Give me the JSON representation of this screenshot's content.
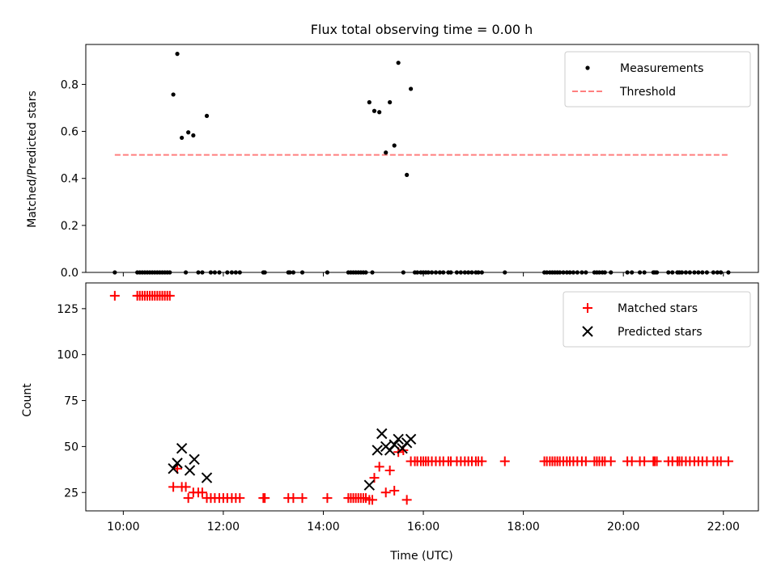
{
  "title": "Flux total observing time = 0.00 h",
  "colors": {
    "matched": "#ff0000",
    "predicted": "#000000",
    "threshold": "#ff7f7f",
    "measurement": "#000000"
  },
  "chart_data": [
    {
      "type": "scatter",
      "ylabel": "Matched/Predicted stars",
      "xlim": [
        9.25,
        22.7
      ],
      "ylim": [
        0,
        0.97
      ],
      "yticks": [
        0,
        0.2,
        0.4,
        0.6,
        0.8
      ],
      "ytick_labels": [
        "0.0",
        "0.2",
        "0.4",
        "0.6",
        "0.8"
      ],
      "legend_position": "upper right",
      "series": [
        {
          "name": "Measurements",
          "kind": "points",
          "x": [
            9.83,
            10.28,
            10.33,
            10.38,
            10.43,
            10.48,
            10.53,
            10.58,
            10.63,
            10.68,
            10.73,
            10.78,
            10.83,
            10.88,
            10.93,
            11.0,
            11.08,
            11.17,
            11.3,
            11.4,
            11.67,
            11.25,
            11.5,
            11.58,
            11.75,
            11.83,
            11.92,
            12.08,
            12.17,
            12.25,
            12.33,
            12.8,
            12.83,
            13.3,
            13.33,
            13.4,
            13.58,
            14.08,
            14.5,
            14.55,
            14.6,
            14.65,
            14.7,
            14.75,
            14.8,
            14.85,
            14.92,
            15.02,
            15.12,
            15.25,
            15.33,
            15.42,
            15.5,
            15.67,
            15.75,
            14.98,
            15.6,
            15.83,
            15.88,
            15.95,
            16.0,
            16.05,
            16.1,
            16.17,
            16.25,
            16.33,
            16.4,
            16.5,
            16.55,
            16.67,
            16.75,
            16.83,
            16.9,
            16.97,
            17.05,
            17.1,
            17.17,
            17.63,
            18.42,
            18.47,
            18.53,
            18.58,
            18.63,
            18.68,
            18.73,
            18.8,
            18.87,
            18.93,
            19.0,
            19.08,
            19.17,
            19.25,
            19.42,
            19.47,
            19.52,
            19.58,
            19.63,
            19.75,
            20.08,
            20.17,
            20.33,
            20.42,
            20.6,
            20.63,
            20.67,
            20.9,
            20.98,
            21.08,
            21.12,
            21.17,
            21.25,
            21.33,
            21.42,
            21.5,
            21.58,
            21.67,
            21.8,
            21.88,
            21.95,
            22.1
          ],
          "y": [
            0,
            0,
            0,
            0,
            0,
            0,
            0,
            0,
            0,
            0,
            0,
            0,
            0,
            0,
            0,
            0.757,
            0.93,
            0.573,
            0.596,
            0.583,
            0.666,
            0,
            0,
            0,
            0,
            0,
            0,
            0,
            0,
            0,
            0,
            0,
            0,
            0,
            0,
            0,
            0,
            0,
            0,
            0,
            0,
            0,
            0,
            0,
            0,
            0,
            0.724,
            0.687,
            0.682,
            0.51,
            0.724,
            0.54,
            0.892,
            0.415,
            0.781,
            0,
            0,
            0,
            0,
            0,
            0,
            0,
            0,
            0,
            0,
            0,
            0,
            0,
            0,
            0,
            0,
            0,
            0,
            0,
            0,
            0,
            0,
            0,
            0,
            0,
            0,
            0,
            0,
            0,
            0,
            0,
            0,
            0,
            0,
            0,
            0,
            0,
            0,
            0,
            0,
            0,
            0,
            0,
            0,
            0,
            0,
            0,
            0,
            0,
            0,
            0,
            0,
            0,
            0,
            0,
            0,
            0,
            0,
            0,
            0,
            0,
            0,
            0,
            0,
            0
          ]
        },
        {
          "name": "Threshold",
          "kind": "hline",
          "y": 0.5,
          "x_range": [
            9.83,
            22.1
          ]
        }
      ]
    },
    {
      "type": "scatter",
      "xlabel": "Time (UTC)",
      "ylabel": "Count",
      "xlim": [
        9.25,
        22.7
      ],
      "ylim": [
        15,
        139
      ],
      "xticks": [
        10,
        12,
        14,
        16,
        18,
        20,
        22
      ],
      "xtick_labels": [
        "10:00",
        "12:00",
        "14:00",
        "16:00",
        "18:00",
        "20:00",
        "22:00"
      ],
      "yticks": [
        25,
        50,
        75,
        100,
        125
      ],
      "ytick_labels": [
        "25",
        "50",
        "75",
        "100",
        "125"
      ],
      "legend_position": "upper right",
      "series": [
        {
          "name": "Matched stars",
          "marker": "plus",
          "x": [
            9.83,
            10.28,
            10.33,
            10.38,
            10.43,
            10.48,
            10.53,
            10.58,
            10.63,
            10.68,
            10.73,
            10.78,
            10.83,
            10.88,
            10.93,
            11.0,
            11.08,
            11.17,
            11.25,
            11.3,
            11.4,
            11.5,
            11.58,
            11.67,
            11.75,
            11.83,
            11.92,
            12.0,
            12.08,
            12.17,
            12.25,
            12.33,
            12.8,
            12.83,
            13.3,
            13.4,
            13.58,
            14.08,
            14.5,
            14.55,
            14.6,
            14.65,
            14.7,
            14.75,
            14.8,
            14.85,
            14.92,
            14.98,
            15.02,
            15.12,
            15.25,
            15.33,
            15.42,
            15.5,
            15.6,
            15.67,
            15.75,
            15.83,
            15.88,
            15.95,
            16.0,
            16.05,
            16.1,
            16.17,
            16.25,
            16.33,
            16.4,
            16.5,
            16.55,
            16.67,
            16.75,
            16.83,
            16.9,
            16.97,
            17.05,
            17.1,
            17.17,
            17.63,
            18.42,
            18.47,
            18.53,
            18.58,
            18.63,
            18.68,
            18.73,
            18.8,
            18.87,
            18.93,
            19.0,
            19.08,
            19.17,
            19.25,
            19.42,
            19.47,
            19.52,
            19.58,
            19.63,
            19.75,
            20.08,
            20.17,
            20.33,
            20.42,
            20.6,
            20.63,
            20.67,
            20.9,
            20.98,
            21.08,
            21.12,
            21.17,
            21.25,
            21.33,
            21.42,
            21.5,
            21.58,
            21.67,
            21.8,
            21.88,
            21.95,
            22.1
          ],
          "y": [
            132,
            132,
            132,
            132,
            132,
            132,
            132,
            132,
            132,
            132,
            132,
            132,
            132,
            132,
            132,
            28,
            38,
            28,
            28,
            22,
            25,
            25,
            25,
            22,
            22,
            22,
            22,
            22,
            22,
            22,
            22,
            22,
            22,
            22,
            22,
            22,
            22,
            22,
            22,
            22,
            22,
            22,
            22,
            22,
            22,
            22,
            21,
            21,
            33,
            39,
            25,
            37,
            26,
            47,
            48,
            21,
            42,
            42,
            42,
            42,
            42,
            42,
            42,
            42,
            42,
            42,
            42,
            42,
            42,
            42,
            42,
            42,
            42,
            42,
            42,
            42,
            42,
            42,
            42,
            42,
            42,
            42,
            42,
            42,
            42,
            42,
            42,
            42,
            42,
            42,
            42,
            42,
            42,
            42,
            42,
            42,
            42,
            42,
            42,
            42,
            42,
            42,
            42,
            42,
            42,
            42,
            42,
            42,
            42,
            42,
            42,
            42,
            42,
            42,
            42,
            42,
            42,
            42,
            42,
            42
          ]
        },
        {
          "name": "Predicted stars",
          "marker": "x",
          "x": [
            11.0,
            11.08,
            11.17,
            11.33,
            11.42,
            11.67,
            14.92,
            15.08,
            15.17,
            15.25,
            15.33,
            15.42,
            15.5,
            15.58,
            15.67,
            15.75
          ],
          "y": [
            38,
            41,
            49,
            37,
            43,
            33,
            29,
            48,
            57,
            50,
            48,
            51,
            54,
            49,
            52,
            54
          ]
        }
      ]
    }
  ]
}
